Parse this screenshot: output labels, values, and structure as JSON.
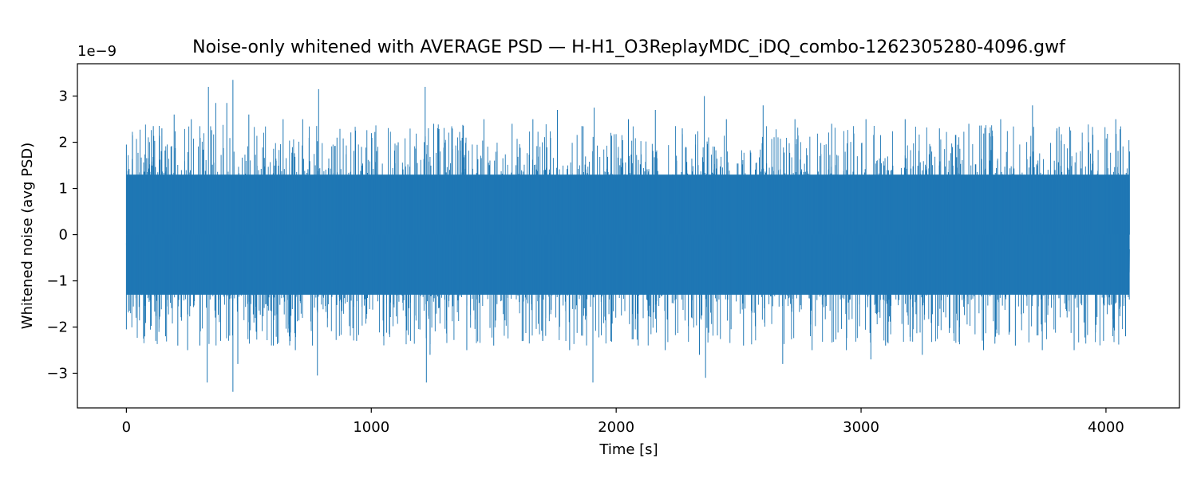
{
  "chart_data": {
    "type": "line",
    "title": "Noise-only whitened with AVERAGE PSD — H-H1_O3ReplayMDC_iDQ_combo-1262305280-4096.gwf",
    "xlabel": "Time [s]",
    "ylabel": "Whitened noise (avg PSD)",
    "y_offset_label": "1e−9",
    "y_scale_factor": 1e-09,
    "xlim": [
      -200,
      4300
    ],
    "ylim": [
      -3.75,
      3.7
    ],
    "x_ticks": [
      0,
      1000,
      2000,
      3000,
      4000
    ],
    "x_tick_labels": [
      "0",
      "1000",
      "2000",
      "3000",
      "4000"
    ],
    "y_ticks": [
      -3,
      -2,
      -1,
      0,
      1,
      2,
      3
    ],
    "y_tick_labels": [
      "−3",
      "−2",
      "−1",
      "0",
      "1",
      "2",
      "3"
    ],
    "grid": false,
    "line_color": "#1f77b4",
    "series": [
      {
        "x_range": [
          0,
          4096
        ],
        "typical_band": [
          -1.3,
          1.3
        ],
        "approx_peak_values_x1e-9": [
          [
            0,
            1.95
          ],
          [
            0,
            -2.05
          ],
          [
            25,
            2.15
          ],
          [
            70,
            -2.25
          ],
          [
            110,
            2.35
          ],
          [
            120,
            -2.3
          ],
          [
            145,
            2.3
          ],
          [
            160,
            -2.2
          ],
          [
            195,
            2.6
          ],
          [
            210,
            -2.4
          ],
          [
            250,
            -2.5
          ],
          [
            265,
            2.5
          ],
          [
            300,
            -2.4
          ],
          [
            335,
            3.2
          ],
          [
            330,
            -3.2
          ],
          [
            365,
            2.85
          ],
          [
            385,
            -2.3
          ],
          [
            410,
            2.85
          ],
          [
            435,
            3.35
          ],
          [
            435,
            -3.4
          ],
          [
            455,
            -2.8
          ],
          [
            500,
            2.6
          ],
          [
            530,
            -2.1
          ],
          [
            600,
            -2.4
          ],
          [
            640,
            2.5
          ],
          [
            690,
            -2.5
          ],
          [
            720,
            2.5
          ],
          [
            760,
            -2.4
          ],
          [
            780,
            -3.05
          ],
          [
            785,
            3.15
          ],
          [
            860,
            2.1
          ],
          [
            940,
            -2.3
          ],
          [
            960,
            1.9
          ],
          [
            1050,
            -2.2
          ],
          [
            1110,
            2.0
          ],
          [
            1160,
            -2.3
          ],
          [
            1220,
            3.2
          ],
          [
            1225,
            -3.2
          ],
          [
            1240,
            -2.6
          ],
          [
            1255,
            2.4
          ],
          [
            1330,
            2.3
          ],
          [
            1390,
            -2.5
          ],
          [
            1460,
            2.5
          ],
          [
            1500,
            -2.4
          ],
          [
            1575,
            2.4
          ],
          [
            1620,
            -2.3
          ],
          [
            1660,
            2.5
          ],
          [
            1700,
            -2.3
          ],
          [
            1760,
            2.7
          ],
          [
            1810,
            -2.5
          ],
          [
            1860,
            2.35
          ],
          [
            1910,
            2.75
          ],
          [
            1905,
            -3.2
          ],
          [
            1980,
            -2.3
          ],
          [
            2050,
            2.5
          ],
          [
            2090,
            -2.4
          ],
          [
            2160,
            2.7
          ],
          [
            2200,
            -2.5
          ],
          [
            2270,
            2.3
          ],
          [
            2340,
            -2.6
          ],
          [
            2360,
            3.0
          ],
          [
            2365,
            -3.1
          ],
          [
            2450,
            2.5
          ],
          [
            2520,
            -2.4
          ],
          [
            2600,
            2.8
          ],
          [
            2680,
            -2.8
          ],
          [
            2730,
            2.5
          ],
          [
            2800,
            -2.5
          ],
          [
            2880,
            2.4
          ],
          [
            2940,
            -2.5
          ],
          [
            3020,
            2.5
          ],
          [
            3040,
            -2.7
          ],
          [
            3100,
            -2.4
          ],
          [
            3180,
            2.5
          ],
          [
            3250,
            -2.6
          ],
          [
            3320,
            2.3
          ],
          [
            3380,
            -2.3
          ],
          [
            3440,
            2.4
          ],
          [
            3500,
            -2.5
          ],
          [
            3570,
            2.5
          ],
          [
            3630,
            -2.4
          ],
          [
            3700,
            2.8
          ],
          [
            3740,
            -2.5
          ],
          [
            3800,
            2.3
          ],
          [
            3870,
            -2.5
          ],
          [
            3930,
            2.0
          ],
          [
            3990,
            -2.3
          ],
          [
            4040,
            2.5
          ],
          [
            4080,
            -2.2
          ],
          [
            4096,
            1.8
          ]
        ]
      }
    ]
  }
}
